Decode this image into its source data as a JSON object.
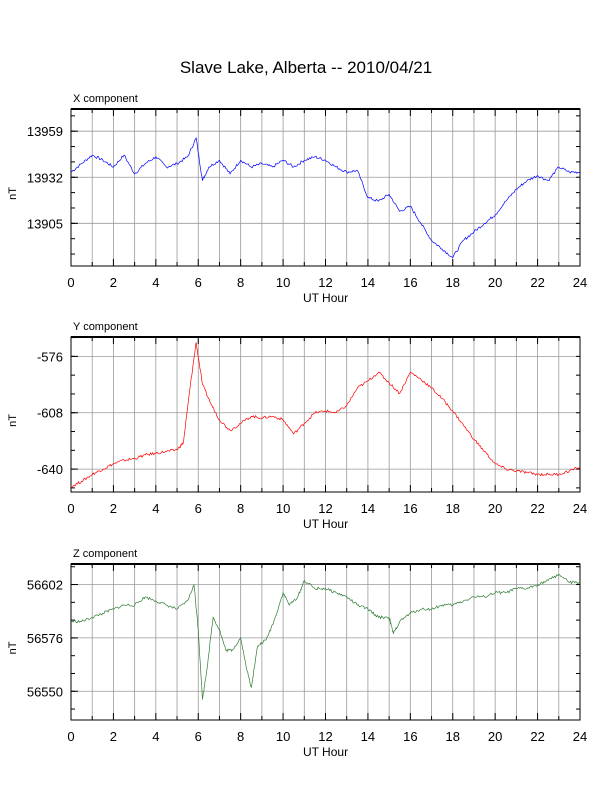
{
  "title": "Slave Lake, Alberta -- 2010/04/21",
  "chart_data": [
    {
      "type": "line",
      "title": "X component",
      "xlabel": "UT Hour",
      "ylabel": "nT",
      "xlim": [
        0,
        24
      ],
      "ylim": [
        13880,
        13972
      ],
      "xticks": [
        0,
        2,
        4,
        6,
        8,
        10,
        12,
        14,
        16,
        18,
        20,
        22,
        24
      ],
      "yticks": [
        13905,
        13932,
        13959
      ],
      "grid": true,
      "color": "#0000ff",
      "x": [
        0,
        0.5,
        1,
        1.5,
        2,
        2.5,
        3,
        3.5,
        4,
        4.5,
        5,
        5.5,
        5.9,
        6.2,
        6.5,
        7,
        7.5,
        8,
        8.5,
        9,
        9.5,
        10,
        10.5,
        11,
        11.5,
        12,
        12.5,
        13,
        13.5,
        14,
        14.5,
        15,
        15.5,
        16,
        16.5,
        17,
        17.5,
        18,
        18.5,
        19,
        19.5,
        20,
        20.5,
        21,
        21.5,
        22,
        22.5,
        23,
        23.5,
        24
      ],
      "y": [
        13935,
        13940,
        13945,
        13942,
        13938,
        13945,
        13934,
        13940,
        13944,
        13938,
        13940,
        13944,
        13955,
        13930,
        13938,
        13942,
        13934,
        13942,
        13938,
        13940,
        13938,
        13942,
        13938,
        13942,
        13944,
        13942,
        13938,
        13935,
        13936,
        13920,
        13918,
        13922,
        13912,
        13915,
        13905,
        13895,
        13890,
        13885,
        13895,
        13900,
        13905,
        13910,
        13918,
        13925,
        13930,
        13933,
        13930,
        13938,
        13935,
        13935
      ]
    },
    {
      "type": "line",
      "title": "Y component",
      "xlabel": "UT Hour",
      "ylabel": "nT",
      "xlim": [
        0,
        24
      ],
      "ylim": [
        -653,
        -565
      ],
      "xticks": [
        0,
        2,
        4,
        6,
        8,
        10,
        12,
        14,
        16,
        18,
        20,
        22,
        24
      ],
      "yticks": [
        -576,
        -608,
        -640
      ],
      "grid": true,
      "color": "#ff0000",
      "x": [
        0,
        0.5,
        1,
        1.5,
        2,
        2.5,
        3,
        3.5,
        4,
        4.5,
        5,
        5.3,
        5.6,
        5.9,
        6.2,
        6.6,
        7,
        7.5,
        8,
        8.5,
        9,
        9.5,
        10,
        10.5,
        11,
        11.5,
        12,
        12.5,
        13,
        13.5,
        14,
        14.5,
        15,
        15.5,
        16,
        16.5,
        17,
        17.5,
        18,
        18.5,
        19,
        19.5,
        20,
        20.5,
        21,
        21.5,
        22,
        22.5,
        23,
        23.5,
        24
      ],
      "y": [
        -650,
        -647,
        -643,
        -640,
        -637,
        -635,
        -634,
        -632,
        -631,
        -630,
        -629,
        -625,
        -595,
        -568,
        -592,
        -603,
        -612,
        -618,
        -614,
        -610,
        -611,
        -610,
        -612,
        -620,
        -614,
        -608,
        -607,
        -608,
        -604,
        -594,
        -590,
        -585,
        -591,
        -597,
        -585,
        -589,
        -594,
        -600,
        -607,
        -615,
        -623,
        -630,
        -637,
        -640,
        -641,
        -642,
        -643,
        -643,
        -643,
        -641,
        -639
      ]
    },
    {
      "type": "line",
      "title": "Z component",
      "xlabel": "UT Hour",
      "ylabel": "nT",
      "xlim": [
        0,
        24
      ],
      "ylim": [
        56536,
        56612
      ],
      "xticks": [
        0,
        2,
        4,
        6,
        8,
        10,
        12,
        14,
        16,
        18,
        20,
        22,
        24
      ],
      "yticks": [
        56550,
        56576,
        56602
      ],
      "grid": true,
      "color": "#2e7d32",
      "x": [
        0,
        0.5,
        1,
        1.5,
        2,
        2.5,
        3,
        3.5,
        4,
        4.5,
        5,
        5.5,
        5.8,
        6.0,
        6.2,
        6.4,
        6.7,
        7,
        7.3,
        7.6,
        8,
        8.3,
        8.5,
        8.8,
        9.2,
        9.6,
        10,
        10.3,
        10.7,
        11,
        11.5,
        12,
        12.5,
        13,
        13.5,
        14,
        14.5,
        15,
        15.2,
        15.5,
        16,
        16.5,
        17,
        17.5,
        18,
        18.5,
        19,
        19.5,
        20,
        20.5,
        21,
        21.5,
        22,
        22.5,
        23,
        23.5,
        24
      ],
      "y": [
        56584,
        56584,
        56586,
        56588,
        56590,
        56592,
        56592,
        56596,
        56594,
        56592,
        56590,
        56594,
        56602,
        56580,
        56546,
        56560,
        56586,
        56580,
        56570,
        56570,
        56576,
        56560,
        56552,
        56572,
        56575,
        56585,
        56598,
        56592,
        56596,
        56604,
        56600,
        56600,
        56598,
        56596,
        56592,
        56590,
        56586,
        56586,
        56578,
        56584,
        56588,
        56590,
        56590,
        56592,
        56592,
        56594,
        56596,
        56596,
        56598,
        56598,
        56600,
        56600,
        56602,
        56604,
        56607,
        56603,
        56603
      ]
    }
  ]
}
